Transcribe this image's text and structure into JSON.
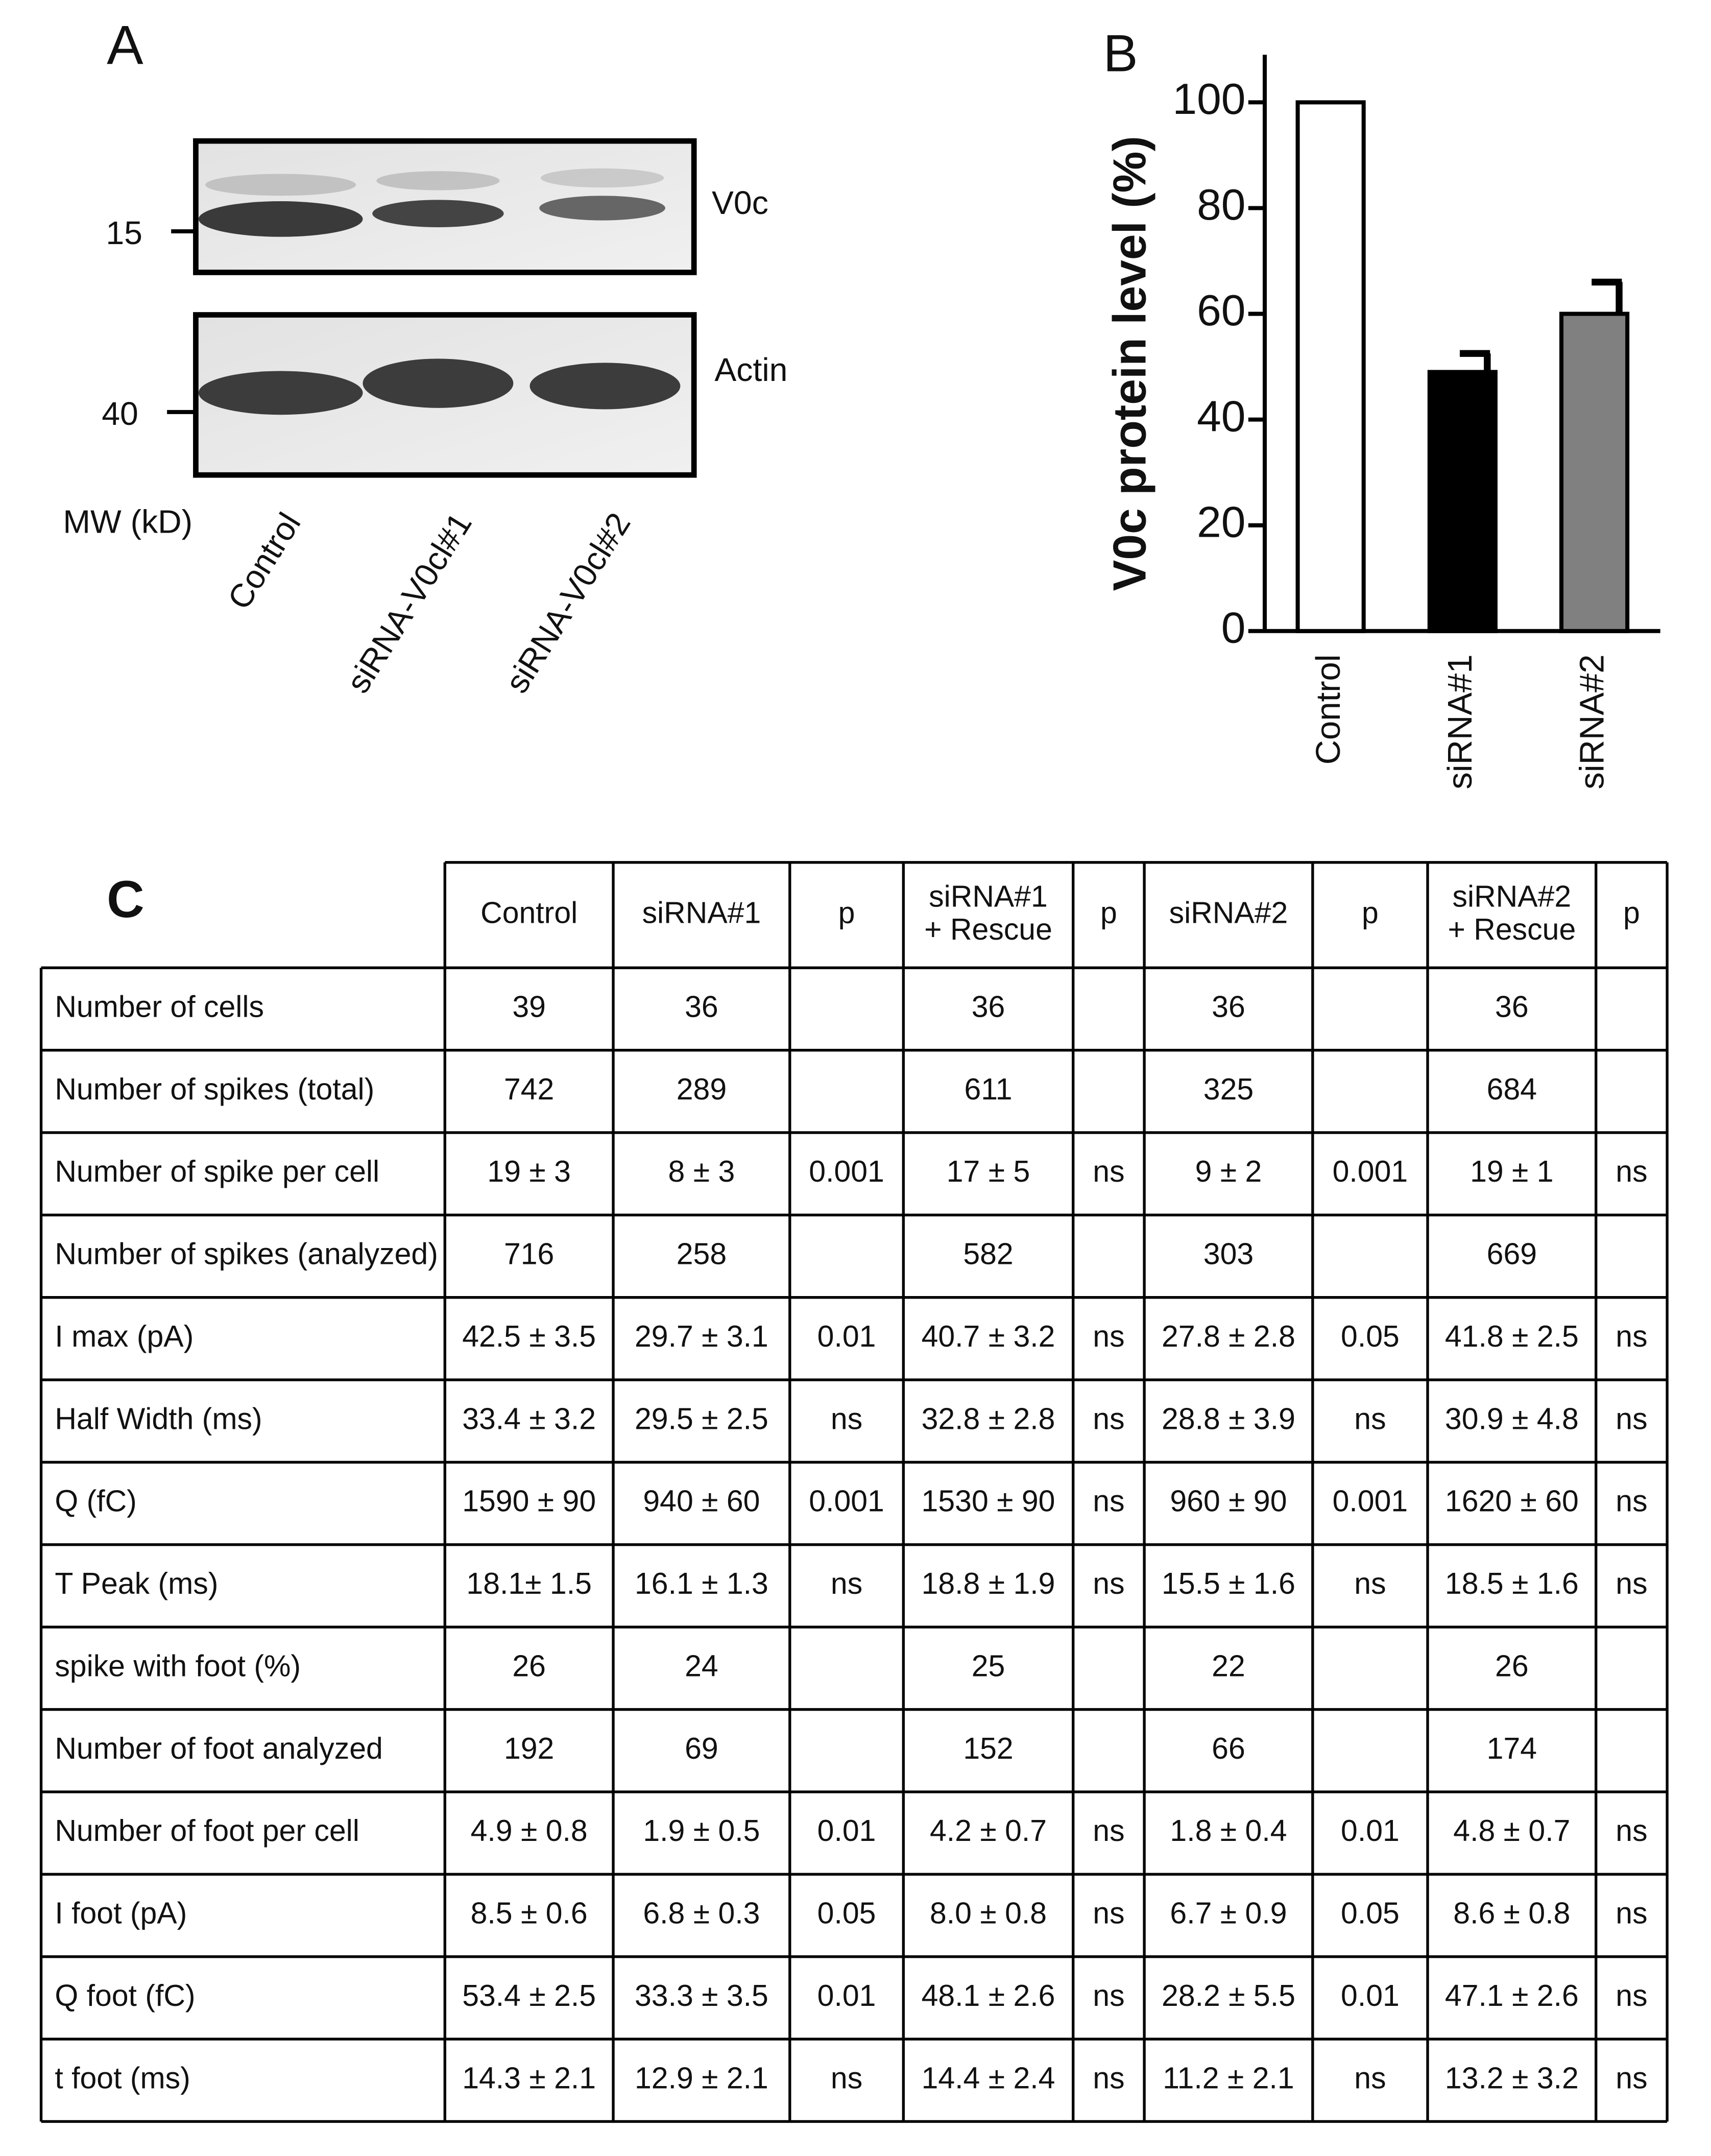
{
  "panels": {
    "a": "A",
    "b": "B",
    "c": "C"
  },
  "blot": {
    "bands": [
      "V0c",
      "Actin"
    ],
    "mw_label": "MW (kD)",
    "mw_markers": [
      "15",
      "40"
    ],
    "lanes": [
      "Control",
      "siRNA-V0cl#1",
      "siRNA-V0cl#2"
    ]
  },
  "chart_data": {
    "type": "bar",
    "ylabel": "V0c protein level (%)",
    "categories": [
      "Control",
      "siRNA#1",
      "siRNA#2"
    ],
    "values": [
      100,
      49,
      60
    ],
    "errors": [
      null,
      3.5,
      6
    ],
    "colors": [
      "#ffffff",
      "#000000",
      "#808080"
    ],
    "ylim": [
      0,
      109
    ],
    "yticks": [
      0,
      20,
      40,
      60,
      80,
      100
    ]
  },
  "table": {
    "header": [
      [
        "Control"
      ],
      [
        "siRNA#1"
      ],
      [
        "p"
      ],
      [
        "siRNA#1",
        "+ Rescue"
      ],
      [
        "p"
      ],
      [
        "siRNA#2"
      ],
      [
        "p"
      ],
      [
        "siRNA#2",
        "+ Rescue"
      ],
      [
        "p"
      ]
    ],
    "rows": [
      [
        "Number of cells",
        "39",
        "36",
        null,
        "36",
        null,
        "36",
        null,
        "36",
        null
      ],
      [
        "Number of spikes (total)",
        "742",
        "289",
        null,
        "611",
        null,
        "325",
        null,
        "684",
        null
      ],
      [
        "Number of spike per cell",
        "19 ± 3",
        "8 ± 3",
        "0.001",
        "17 ± 5",
        "ns",
        "9 ± 2",
        "0.001",
        "19 ± 1",
        "ns"
      ],
      [
        "Number of spikes (analyzed)",
        "716",
        "258",
        null,
        "582",
        null,
        "303",
        null,
        "669",
        null
      ],
      [
        "I max (pA)",
        "42.5 ± 3.5",
        "29.7 ± 3.1",
        "0.01",
        "40.7 ± 3.2",
        "ns",
        "27.8 ± 2.8",
        "0.05",
        "41.8 ± 2.5",
        "ns"
      ],
      [
        "Half Width (ms)",
        "33.4 ± 3.2",
        "29.5 ± 2.5",
        "ns",
        "32.8 ± 2.8",
        "ns",
        "28.8 ± 3.9",
        "ns",
        "30.9 ± 4.8",
        "ns"
      ],
      [
        "Q (fC)",
        "1590 ± 90",
        "940 ± 60",
        "0.001",
        "1530 ± 90",
        "ns",
        "960 ± 90",
        "0.001",
        "1620 ± 60",
        "ns"
      ],
      [
        "T Peak (ms)",
        "18.1± 1.5",
        "16.1 ± 1.3",
        "ns",
        "18.8 ± 1.9",
        "ns",
        "15.5 ± 1.6",
        "ns",
        "18.5 ± 1.6",
        "ns"
      ],
      [
        "spike with foot (%)",
        "26",
        "24",
        null,
        "25",
        null,
        "22",
        null,
        "26",
        null
      ],
      [
        "Number of foot analyzed",
        "192",
        "69",
        null,
        "152",
        null,
        "66",
        null,
        "174",
        null
      ],
      [
        "Number of foot per cell",
        "4.9 ± 0.8",
        "1.9 ± 0.5",
        "0.01",
        "4.2 ± 0.7",
        "ns",
        "1.8 ± 0.4",
        "0.01",
        "4.8 ± 0.7",
        "ns"
      ],
      [
        "I foot (pA)",
        "8.5 ± 0.6",
        "6.8 ± 0.3",
        "0.05",
        "8.0 ± 0.8",
        "ns",
        "6.7 ± 0.9",
        "0.05",
        "8.6 ± 0.8",
        "ns"
      ],
      [
        "Q foot (fC)",
        "53.4 ± 2.5",
        "33.3 ± 3.5",
        "0.01",
        "48.1 ± 2.6",
        "ns",
        "28.2 ± 5.5",
        "0.01",
        "47.1 ± 2.6",
        "ns"
      ],
      [
        "t foot (ms)",
        "14.3 ± 2.1",
        "12.9 ± 2.1",
        "ns",
        "14.4 ± 2.4",
        "ns",
        "11.2 ± 2.1",
        "ns",
        "13.2 ± 3.2",
        "ns"
      ]
    ]
  }
}
